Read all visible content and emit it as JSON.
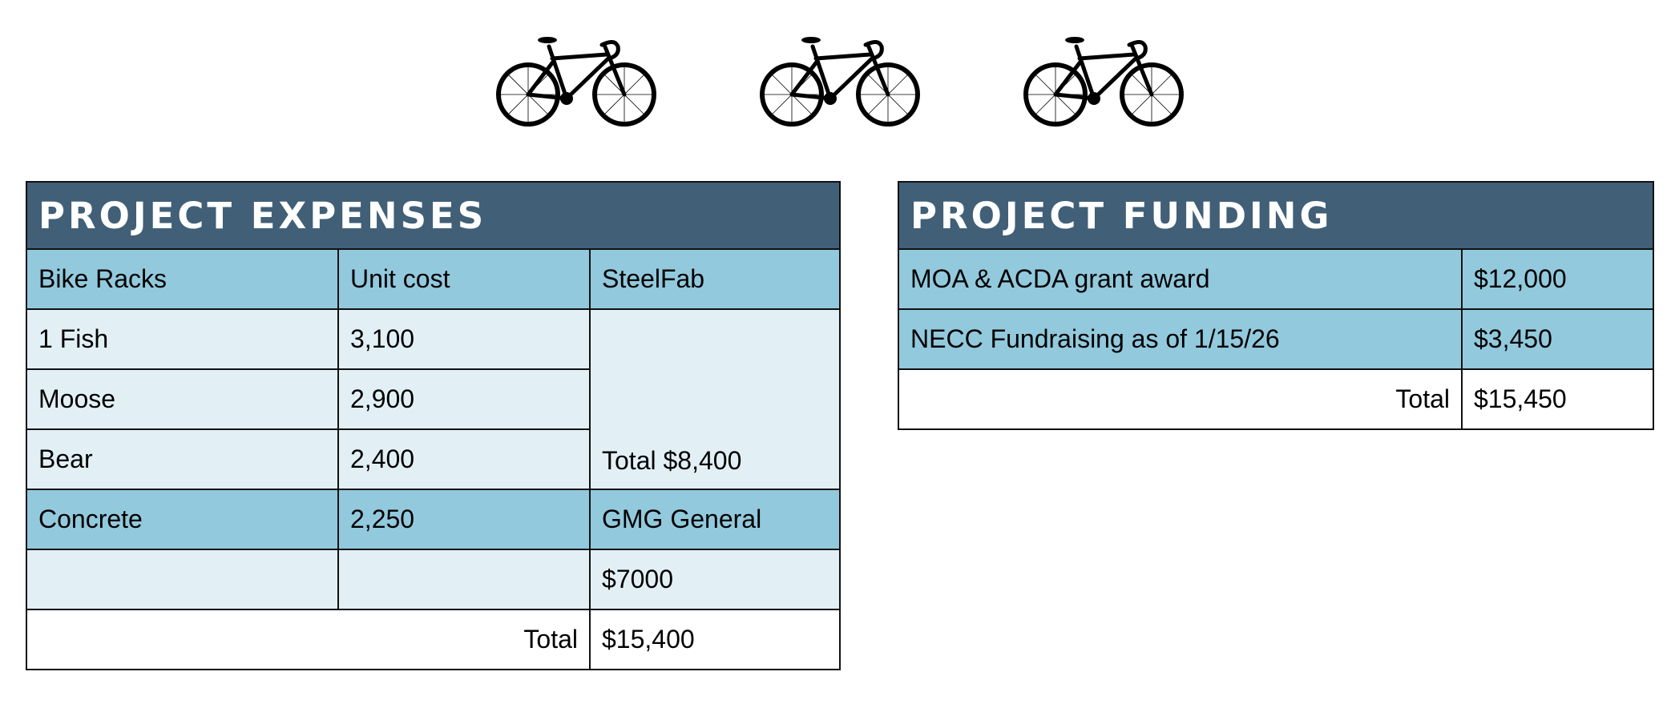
{
  "icons": [
    "bicycle-icon",
    "bicycle-icon",
    "bicycle-icon"
  ],
  "colors": {
    "header": "#415f77",
    "row_medium": "#92c9dd",
    "row_light": "#e2f0f6"
  },
  "expenses": {
    "title": "PROJECT EXPENSES",
    "header": [
      "Bike Racks",
      "Unit cost",
      "SteelFab"
    ],
    "racks": [
      {
        "item": "1 Fish",
        "cost": "3,100"
      },
      {
        "item": "Moose",
        "cost": "2,900"
      },
      {
        "item": "Bear",
        "cost": "2,400"
      }
    ],
    "steelfab_total": "Total $8,400",
    "concrete": {
      "item": "Concrete",
      "cost": "2,250",
      "vendor": "GMG General"
    },
    "gmg_amount": "$7000",
    "total_label": "Total",
    "total_value": "$15,400"
  },
  "funding": {
    "title": "PROJECT FUNDING",
    "rows": [
      {
        "source": "MOA & ACDA grant award",
        "amount": "$12,000"
      },
      {
        "source": "NECC Fundraising as of 1/15/26",
        "amount": "$3,450"
      }
    ],
    "total_label": "Total",
    "total_value": "$15,450"
  }
}
